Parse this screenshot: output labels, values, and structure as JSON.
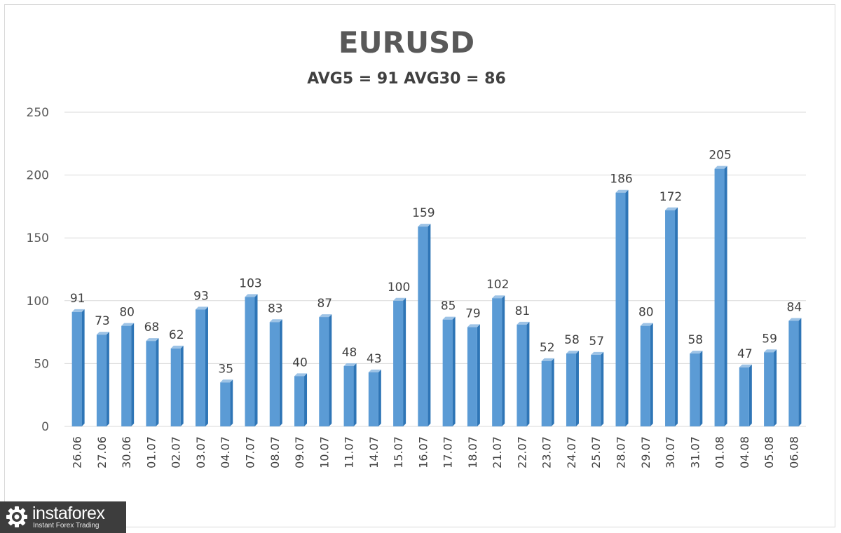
{
  "chart_data": {
    "type": "bar",
    "title": "EURUSD",
    "subtitle": "AVG5 = 91 AVG30 = 86",
    "categories": [
      "26.06",
      "27.06",
      "30.06",
      "01.07",
      "02.07",
      "03.07",
      "04.07",
      "07.07",
      "08.07",
      "09.07",
      "10.07",
      "11.07",
      "14.07",
      "15.07",
      "16.07",
      "17.07",
      "18.07",
      "21.07",
      "22.07",
      "23.07",
      "24.07",
      "25.07",
      "28.07",
      "29.07",
      "30.07",
      "31.07",
      "01.08",
      "04.08",
      "05.08",
      "06.08"
    ],
    "values": [
      91,
      73,
      80,
      68,
      62,
      93,
      35,
      103,
      83,
      40,
      87,
      48,
      43,
      100,
      159,
      85,
      79,
      102,
      81,
      52,
      58,
      57,
      186,
      80,
      172,
      58,
      205,
      47,
      59,
      84
    ],
    "ylim": [
      0,
      250
    ],
    "yticks": [
      0,
      50,
      100,
      150,
      200,
      250
    ],
    "grid": true,
    "legend": "none",
    "bar_color": "#5b9bd5",
    "bar_dark_color": "#2e75b6",
    "xlabel": "",
    "ylabel": ""
  },
  "logo": {
    "name": "instaforex",
    "tagline": "Instant Forex Trading"
  }
}
